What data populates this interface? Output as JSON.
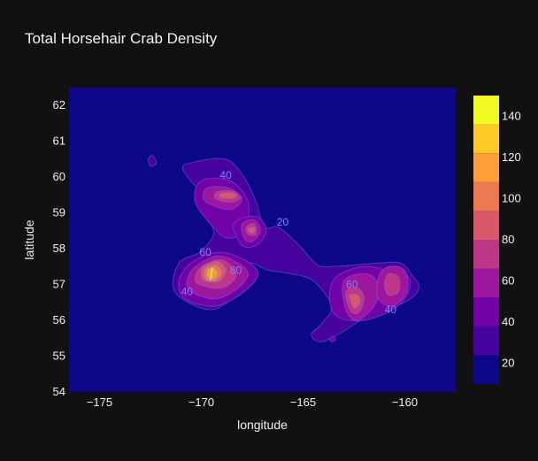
{
  "chart_data": {
    "type": "contour",
    "title": "Total Horsehair Crab Density",
    "xlabel": "longitude",
    "ylabel": "latitude",
    "xlim": [
      -176.5,
      -157.5
    ],
    "ylim": [
      54,
      62.5
    ],
    "xticks": [
      -175,
      -170,
      -165,
      -160
    ],
    "xtick_labels": [
      "−175",
      "−170",
      "−165",
      "−160"
    ],
    "yticks": [
      54,
      55,
      56,
      57,
      58,
      59,
      60,
      61,
      62
    ],
    "grid": false,
    "colorbar": {
      "range": [
        10,
        150
      ],
      "ticks": [
        20,
        40,
        60,
        80,
        100,
        120,
        140
      ],
      "colors": [
        "#0d0887",
        "#46039f",
        "#7201a8",
        "#9c179e",
        "#bd3786",
        "#d8576b",
        "#ed7953",
        "#fb9f3a",
        "#fdca26",
        "#f0f921"
      ]
    },
    "contour_levels": [
      {
        "level": 10,
        "regions": [
          [
            [
              -170.5,
              60.4
            ],
            [
              -168.8,
              60.5
            ],
            [
              -167.9,
              60.0
            ],
            [
              -167.3,
              59.3
            ],
            [
              -166.9,
              58.6
            ],
            [
              -166.2,
              58.6
            ],
            [
              -165.2,
              58.1
            ],
            [
              -164.4,
              57.6
            ],
            [
              -163.8,
              57.5
            ],
            [
              -161.3,
              57.6
            ],
            [
              -160.2,
              57.6
            ],
            [
              -159.7,
              57.3
            ],
            [
              -159.3,
              56.9
            ],
            [
              -160.0,
              56.5
            ],
            [
              -161.6,
              56.2
            ],
            [
              -163.0,
              55.7
            ],
            [
              -164.1,
              55.4
            ],
            [
              -164.6,
              55.6
            ],
            [
              -164.1,
              55.9
            ],
            [
              -163.6,
              56.4
            ],
            [
              -164.5,
              57.1
            ],
            [
              -165.6,
              57.3
            ],
            [
              -166.7,
              57.4
            ],
            [
              -167.6,
              57.6
            ],
            [
              -167.6,
              57.2
            ],
            [
              -168.5,
              56.6
            ],
            [
              -169.7,
              56.3
            ],
            [
              -171.3,
              56.8
            ],
            [
              -171.1,
              57.6
            ],
            [
              -170.1,
              57.9
            ],
            [
              -169.4,
              58.4
            ],
            [
              -169.7,
              58.9
            ],
            [
              -170.0,
              59.5
            ],
            [
              -170.9,
              60.2
            ]
          ],
          [
            [
              -172.6,
              60.5
            ],
            [
              -172.4,
              60.6
            ],
            [
              -172.2,
              60.4
            ],
            [
              -172.5,
              60.3
            ]
          ]
        ]
      },
      {
        "level": 20,
        "regions": [
          [
            [
              -170.0,
              59.9
            ],
            [
              -168.6,
              59.9
            ],
            [
              -167.7,
              59.3
            ],
            [
              -167.9,
              58.5
            ],
            [
              -168.7,
              58.3
            ],
            [
              -169.4,
              58.6
            ],
            [
              -170.3,
              59.3
            ]
          ],
          [
            [
              -168.4,
              58.7
            ],
            [
              -167.3,
              58.9
            ],
            [
              -166.8,
              58.5
            ],
            [
              -167.3,
              58.1
            ],
            [
              -168.0,
              58.1
            ]
          ],
          [
            [
              -170.5,
              57.6
            ],
            [
              -169.2,
              57.9
            ],
            [
              -167.9,
              57.7
            ],
            [
              -167.2,
              57.3
            ],
            [
              -167.9,
              56.8
            ],
            [
              -169.3,
              56.4
            ],
            [
              -170.8,
              56.6
            ],
            [
              -171.1,
              57.1
            ]
          ],
          [
            [
              -163.4,
              57.2
            ],
            [
              -162.1,
              57.5
            ],
            [
              -160.9,
              57.4
            ],
            [
              -159.8,
              57.2
            ],
            [
              -159.9,
              56.7
            ],
            [
              -160.6,
              56.3
            ],
            [
              -162.0,
              56.0
            ],
            [
              -163.3,
              56.1
            ],
            [
              -163.7,
              56.6
            ]
          ],
          [
            [
              -163.7,
              55.5
            ],
            [
              -163.5,
              55.55
            ],
            [
              -163.4,
              55.45
            ],
            [
              -163.6,
              55.4
            ]
          ]
        ]
      },
      {
        "level": 40,
        "regions": [
          [
            [
              -169.7,
              59.7
            ],
            [
              -168.7,
              59.7
            ],
            [
              -168.0,
              59.4
            ],
            [
              -168.5,
              59.1
            ],
            [
              -169.4,
              59.2
            ],
            [
              -169.9,
              59.4
            ]
          ],
          [
            [
              -168.0,
              58.7
            ],
            [
              -167.4,
              58.8
            ],
            [
              -167.1,
              58.5
            ],
            [
              -167.5,
              58.2
            ],
            [
              -167.9,
              58.3
            ]
          ],
          [
            [
              -170.3,
              57.5
            ],
            [
              -169.2,
              57.8
            ],
            [
              -168.2,
              57.6
            ],
            [
              -167.7,
              57.3
            ],
            [
              -168.2,
              56.9
            ],
            [
              -169.3,
              56.6
            ],
            [
              -170.5,
              56.8
            ],
            [
              -170.7,
              57.1
            ]
          ],
          [
            [
              -163.0,
              57.1
            ],
            [
              -162.0,
              57.3
            ],
            [
              -161.4,
              57.1
            ],
            [
              -161.4,
              56.5
            ],
            [
              -162.3,
              56.0
            ],
            [
              -162.9,
              56.3
            ]
          ],
          [
            [
              -160.8,
              57.5
            ],
            [
              -160.0,
              57.4
            ],
            [
              -159.9,
              56.8
            ],
            [
              -160.6,
              56.4
            ],
            [
              -161.3,
              56.6
            ],
            [
              -161.3,
              57.2
            ]
          ]
        ]
      },
      {
        "level": 60,
        "regions": [
          [
            [
              -169.2,
              59.6
            ],
            [
              -168.4,
              59.6
            ],
            [
              -168.1,
              59.4
            ],
            [
              -168.6,
              59.3
            ],
            [
              -169.3,
              59.4
            ]
          ],
          [
            [
              -167.8,
              58.6
            ],
            [
              -167.4,
              58.7
            ],
            [
              -167.3,
              58.4
            ],
            [
              -167.7,
              58.4
            ]
          ],
          [
            [
              -170.0,
              57.5
            ],
            [
              -169.1,
              57.7
            ],
            [
              -168.5,
              57.5
            ],
            [
              -168.3,
              57.2
            ],
            [
              -169.0,
              56.9
            ],
            [
              -170.1,
              57.0
            ],
            [
              -170.3,
              57.2
            ]
          ],
          [
            [
              -162.9,
              56.8
            ],
            [
              -162.3,
              56.9
            ],
            [
              -162.0,
              56.6
            ],
            [
              -162.3,
              56.2
            ],
            [
              -162.7,
              56.3
            ]
          ],
          [
            [
              -160.8,
              57.3
            ],
            [
              -160.3,
              57.2
            ],
            [
              -160.3,
              56.8
            ],
            [
              -160.8,
              56.7
            ],
            [
              -161.0,
              57.0
            ]
          ]
        ]
      },
      {
        "level": 80,
        "regions": [
          [
            [
              -169.0,
              59.55
            ],
            [
              -168.4,
              59.55
            ],
            [
              -168.3,
              59.45
            ],
            [
              -168.7,
              59.4
            ],
            [
              -169.1,
              59.45
            ]
          ],
          [
            [
              -167.7,
              58.55
            ],
            [
              -167.4,
              58.6
            ],
            [
              -167.4,
              58.45
            ],
            [
              -167.6,
              58.45
            ]
          ],
          [
            [
              -169.9,
              57.5
            ],
            [
              -169.2,
              57.65
            ],
            [
              -168.8,
              57.4
            ],
            [
              -169.1,
              57.1
            ],
            [
              -169.8,
              57.1
            ],
            [
              -170.0,
              57.25
            ]
          ],
          [
            [
              -162.7,
              56.7
            ],
            [
              -162.3,
              56.7
            ],
            [
              -162.2,
              56.5
            ],
            [
              -162.5,
              56.35
            ]
          ]
        ]
      },
      {
        "level": 100,
        "regions": [
          [
            [
              -169.8,
              57.45
            ],
            [
              -169.3,
              57.55
            ],
            [
              -169.0,
              57.35
            ],
            [
              -169.3,
              57.1
            ],
            [
              -169.8,
              57.15
            ]
          ]
        ]
      },
      {
        "level": 120,
        "regions": [
          [
            [
              -169.7,
              57.4
            ],
            [
              -169.4,
              57.5
            ],
            [
              -169.2,
              57.3
            ],
            [
              -169.4,
              57.15
            ],
            [
              -169.7,
              57.2
            ]
          ]
        ]
      },
      {
        "level": 140,
        "regions": [
          [
            [
              -169.55,
              57.45
            ],
            [
              -169.4,
              57.45
            ],
            [
              -169.45,
              57.2
            ],
            [
              -169.6,
              57.1
            ]
          ]
        ]
      }
    ],
    "contour_labels": [
      {
        "text": "40",
        "lon": -168.8,
        "lat": 59.95
      },
      {
        "text": "20",
        "lon": -166.0,
        "lat": 58.65
      },
      {
        "text": "60",
        "lon": -169.8,
        "lat": 57.8
      },
      {
        "text": "80",
        "lon": -168.3,
        "lat": 57.3
      },
      {
        "text": "40",
        "lon": -170.7,
        "lat": 56.7
      },
      {
        "text": "60",
        "lon": -162.6,
        "lat": 56.9
      },
      {
        "text": "40",
        "lon": -160.7,
        "lat": 56.2
      }
    ]
  }
}
